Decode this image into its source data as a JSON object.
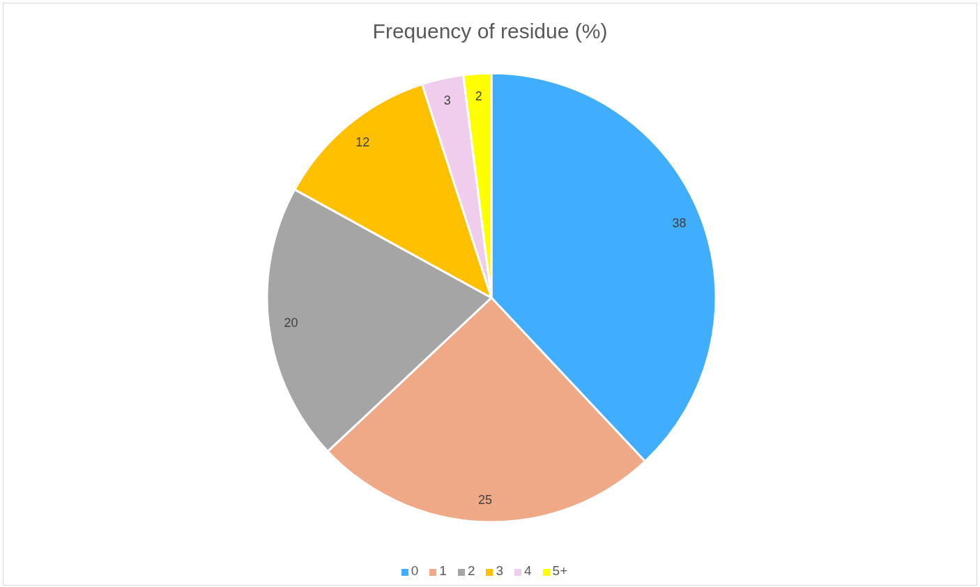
{
  "chart_data": {
    "type": "pie",
    "title": "Frequency of residue (%)",
    "categories": [
      "0",
      "1",
      "2",
      "3",
      "4",
      "5+"
    ],
    "values": [
      38,
      25,
      20,
      12,
      3,
      2
    ],
    "colors": [
      "#41adff",
      "#f0a986",
      "#a5a5a5",
      "#ffc000",
      "#f0cded",
      "#ffff00"
    ],
    "data_labels": true,
    "legend": "bottom"
  }
}
